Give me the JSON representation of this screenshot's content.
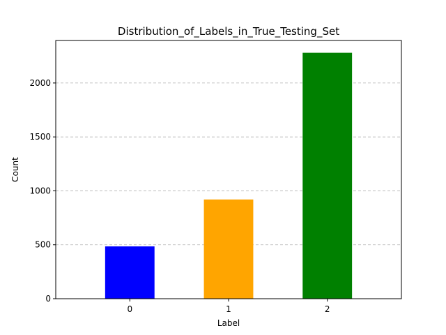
{
  "chart_data": {
    "type": "bar",
    "title": "Distribution_of_Labels_in_True_Testing_Set",
    "xlabel": "Label",
    "ylabel": "Count",
    "categories": [
      "0",
      "1",
      "2"
    ],
    "values": [
      485,
      920,
      2280
    ],
    "colors": [
      "#0000ff",
      "#ffa500",
      "#008000"
    ],
    "ylim": [
      0,
      2394
    ],
    "yticks": [
      0,
      500,
      1000,
      1500,
      2000
    ],
    "grid": "y-dashed",
    "legend": "none"
  }
}
